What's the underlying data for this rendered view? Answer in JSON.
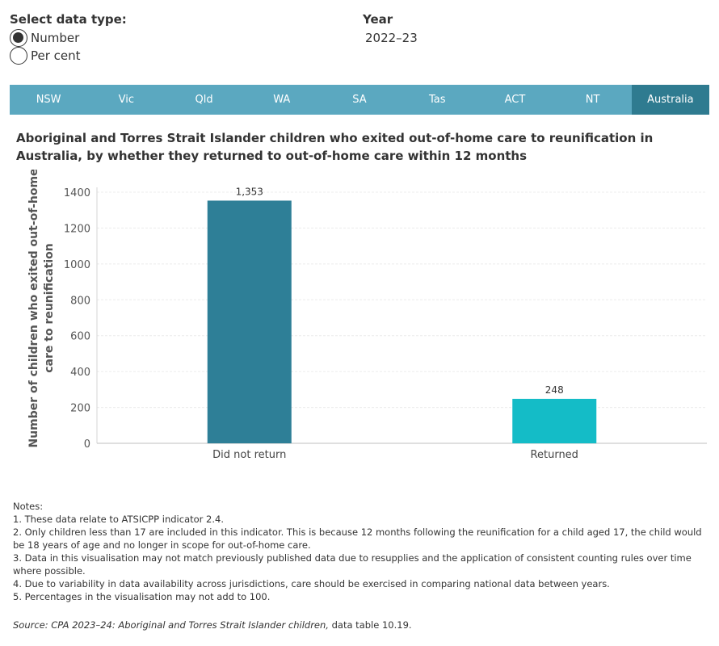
{
  "controls": {
    "data_type_title": "Select data type:",
    "options": [
      {
        "label": "Number",
        "checked": true
      },
      {
        "label": "Per cent",
        "checked": false
      }
    ],
    "year_title": "Year",
    "year_value": "2022–23"
  },
  "tabs": [
    "NSW",
    "Vic",
    "Qld",
    "WA",
    "SA",
    "Tas",
    "ACT",
    "NT",
    "Australia"
  ],
  "active_tab": "Australia",
  "chart_data": {
    "type": "bar",
    "title": "Aboriginal and Torres Strait Islander children who exited out-of-home care to reunification in Australia, by whether they returned to out-of-home care within 12 months",
    "ylabel": "Number of children who exited out-of-home care to reunification",
    "xlabel": "",
    "categories": [
      "Did not return",
      "Returned"
    ],
    "values": [
      1353,
      248
    ],
    "data_labels": [
      "1,353",
      "248"
    ],
    "colors": [
      "#2e7f97",
      "#14bcc7"
    ],
    "yticks": [
      0,
      200,
      400,
      600,
      800,
      1000,
      1200,
      1400
    ],
    "ylim": [
      0,
      1400
    ],
    "grid": true
  },
  "notes": {
    "title": "Notes:",
    "items": [
      "1. These data relate to ATSICPP indicator 2.4.",
      "2. Only children less than 17 are included in this indicator. This is because 12 months following the reunification for a child aged 17, the child would be 18 years of age and no longer in scope for out-of-home care.",
      "3. Data in this visualisation may not match previously published data due to resupplies and the application of consistent counting rules over time where possible.",
      "4. Due to variability in data availability across jurisdictions, care should be exercised in comparing national data between years.",
      "5. Percentages in the visualisation may not add to 100."
    ]
  },
  "source": {
    "prefix": "Source: CPA 2023–24: Aboriginal and Torres Strait Islander children,",
    "suffix": " data table 10.19."
  }
}
